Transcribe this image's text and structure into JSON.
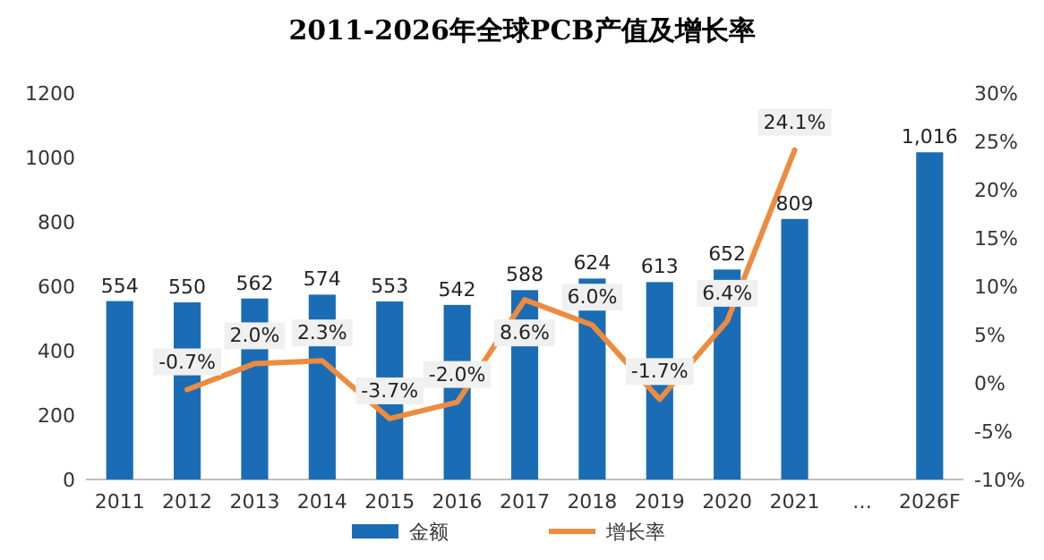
{
  "chart_data": {
    "type": "bar",
    "title": "2011-2026年全球PCB产值及增长率",
    "categories": [
      "2011",
      "2012",
      "2013",
      "2014",
      "2015",
      "2016",
      "2017",
      "2018",
      "2019",
      "2020",
      "2021",
      "…",
      "2026F"
    ],
    "series": [
      {
        "name": "金额",
        "color": "#1a6db5",
        "values": [
          554,
          550,
          562,
          574,
          553,
          542,
          588,
          624,
          613,
          652,
          809,
          null,
          1016
        ],
        "value_labels": [
          "554",
          "550",
          "562",
          "574",
          "553",
          "542",
          "588",
          "624",
          "613",
          "652",
          "809",
          null,
          "1,016"
        ]
      },
      {
        "name": "增长率",
        "type": "line",
        "axis": "y2",
        "color": "#ed8b3f",
        "values": [
          null,
          -0.7,
          2.0,
          2.3,
          -3.7,
          -2.0,
          8.6,
          6.0,
          -1.7,
          6.4,
          24.1,
          null,
          null
        ],
        "value_labels": [
          null,
          "-0.7%",
          "2.0%",
          "2.3%",
          "-3.7%",
          "-2.0%",
          "8.6%",
          "6.0%",
          "-1.7%",
          "6.4%",
          "24.1%",
          null,
          null
        ]
      }
    ],
    "ylim": [
      0,
      1200
    ],
    "yticks": [
      0,
      200,
      400,
      600,
      800,
      1000,
      1200
    ],
    "y2lim": [
      -10,
      30
    ],
    "y2ticks": [
      {
        "value": -10,
        "label": "-10%"
      },
      {
        "value": -5,
        "label": "-5%"
      },
      {
        "value": 0,
        "label": "0%"
      },
      {
        "value": 5,
        "label": "5%"
      },
      {
        "value": 10,
        "label": "10%"
      },
      {
        "value": 15,
        "label": "15%"
      },
      {
        "value": 20,
        "label": "20%"
      },
      {
        "value": 25,
        "label": "25%"
      },
      {
        "value": 30,
        "label": "30%"
      }
    ],
    "legend": "bottom"
  }
}
